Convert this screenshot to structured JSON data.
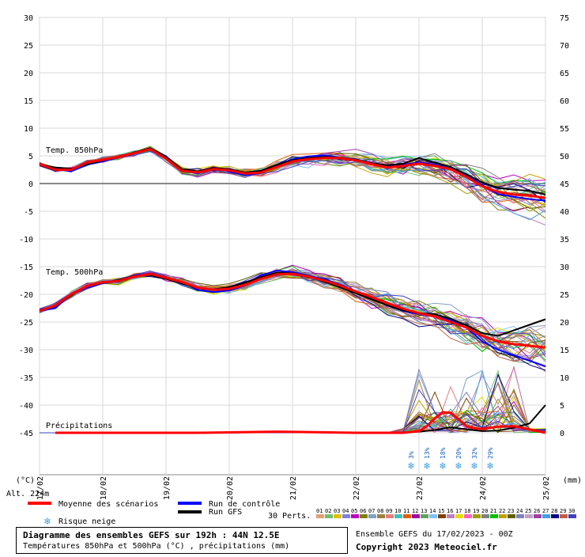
{
  "chart_data": {
    "type": "line",
    "title": "Diagramme des ensembles GEFS sur 192h : 44N 12.5E",
    "subtitle": "Températures 850hPa et 500hPa (°C) , précipitations (mm)",
    "left_axis": {
      "label": "(°C)",
      "ticks": [
        30,
        25,
        20,
        15,
        10,
        5,
        0,
        -5,
        -10,
        -15,
        -20,
        -25,
        -30,
        -35,
        -40,
        -45
      ],
      "range": [
        -45,
        30
      ]
    },
    "right_axis": {
      "label": "(mm)",
      "ticks": [
        75,
        70,
        65,
        60,
        55,
        50,
        45,
        40,
        35,
        30,
        25,
        20,
        15,
        10,
        5,
        0
      ],
      "range": [
        0,
        75
      ]
    },
    "x_axis": {
      "ticks": [
        "17/02",
        "18/02",
        "19/02",
        "20/02",
        "21/02",
        "22/02",
        "23/02",
        "24/02",
        "25/02"
      ],
      "range": [
        0,
        192
      ]
    },
    "altitude": "Alt. 224m",
    "panels": {
      "t850": "Temp. 850hPa",
      "t500": "Temp. 500hPa",
      "precip": "Précipitations"
    },
    "snow_risk": [
      {
        "x": 141,
        "label": "3%"
      },
      {
        "x": 147,
        "label": "13%"
      },
      {
        "x": 153,
        "label": "18%"
      },
      {
        "x": 159,
        "label": "20%"
      },
      {
        "x": 165,
        "label": "32%"
      },
      {
        "x": 171,
        "label": "29%"
      }
    ],
    "t850_mean": {
      "x": [
        0,
        6,
        12,
        18,
        24,
        30,
        36,
        42,
        48,
        54,
        60,
        66,
        72,
        78,
        84,
        90,
        96,
        102,
        108,
        114,
        120,
        126,
        132,
        138,
        144,
        150,
        156,
        162,
        168,
        174,
        180,
        186,
        192
      ],
      "y": [
        3.5,
        2.5,
        2.5,
        3.8,
        4.3,
        4.8,
        5.5,
        6.2,
        4.5,
        2.3,
        2.0,
        2.6,
        2.4,
        1.8,
        2.0,
        3.0,
        4.0,
        4.4,
        4.6,
        4.6,
        4.2,
        3.5,
        2.9,
        3.2,
        3.6,
        3.2,
        2.6,
        1.2,
        -0.5,
        -1.5,
        -2.0,
        -2.2,
        -2.6
      ]
    },
    "t850_control": {
      "x": [
        0,
        6,
        12,
        18,
        24,
        30,
        36,
        42,
        48,
        54,
        60,
        66,
        72,
        78,
        84,
        90,
        96,
        102,
        108,
        114,
        120,
        126,
        132,
        138,
        144,
        150,
        156,
        162,
        168,
        174,
        180,
        186,
        192
      ],
      "y": [
        3.5,
        2.8,
        2.2,
        3.4,
        4.0,
        4.7,
        5.4,
        6.2,
        4.9,
        2.5,
        1.8,
        2.9,
        2.2,
        1.5,
        1.9,
        3.3,
        4.4,
        4.9,
        5.1,
        4.7,
        4.4,
        3.6,
        3.1,
        3.4,
        3.8,
        3.4,
        2.9,
        1.6,
        -0.3,
        -1.9,
        -2.4,
        -2.8,
        -3.1
      ]
    },
    "t850_gfs": {
      "x": [
        0,
        6,
        12,
        18,
        24,
        30,
        36,
        42,
        48,
        54,
        60,
        66,
        72,
        78,
        84,
        90,
        96,
        102,
        108,
        114,
        120,
        126,
        132,
        138,
        144,
        150,
        156,
        162,
        168,
        174,
        180,
        186,
        192
      ],
      "y": [
        3.5,
        2.9,
        2.7,
        3.5,
        4.2,
        4.9,
        5.6,
        6.4,
        4.8,
        2.6,
        2.2,
        2.8,
        2.6,
        2.0,
        2.3,
        3.4,
        4.2,
        4.6,
        4.8,
        4.7,
        4.3,
        3.7,
        3.3,
        3.6,
        4.6,
        3.8,
        3.0,
        1.7,
        0.2,
        -0.8,
        -1.1,
        -1.3,
        -2.0
      ]
    },
    "t500_mean": {
      "x": [
        0,
        6,
        12,
        18,
        24,
        30,
        36,
        42,
        48,
        54,
        60,
        66,
        72,
        78,
        84,
        90,
        96,
        102,
        108,
        114,
        120,
        126,
        132,
        138,
        144,
        150,
        156,
        162,
        168,
        174,
        180,
        186,
        192
      ],
      "y": [
        -23,
        -22,
        -20,
        -18.5,
        -17.8,
        -17.6,
        -16.8,
        -16.3,
        -17.0,
        -17.8,
        -18.8,
        -19.2,
        -19.0,
        -18.3,
        -17.2,
        -16.4,
        -16.3,
        -16.8,
        -17.5,
        -18.4,
        -19.5,
        -20.5,
        -21.6,
        -22.6,
        -23.4,
        -24.0,
        -25.0,
        -26.0,
        -27.5,
        -28.5,
        -29.0,
        -29.3,
        -29.6
      ]
    },
    "t500_control": {
      "x": [
        0,
        6,
        12,
        18,
        24,
        30,
        36,
        42,
        48,
        54,
        60,
        66,
        72,
        78,
        84,
        90,
        96,
        102,
        108,
        114,
        120,
        126,
        132,
        138,
        144,
        150,
        156,
        162,
        168,
        174,
        180,
        186,
        192
      ],
      "y": [
        -23,
        -22.5,
        -20,
        -18.8,
        -18.0,
        -17.5,
        -16.6,
        -16.2,
        -16.9,
        -17.8,
        -19.2,
        -19.6,
        -19.3,
        -18.4,
        -16.6,
        -15.7,
        -16.0,
        -16.6,
        -17.3,
        -18.2,
        -19.5,
        -20.8,
        -22.0,
        -23.0,
        -23.6,
        -24.0,
        -24.6,
        -26.0,
        -28.5,
        -30.0,
        -31.0,
        -32.0,
        -33.0
      ]
    },
    "t500_gfs": {
      "x": [
        0,
        6,
        12,
        18,
        24,
        30,
        36,
        42,
        48,
        54,
        60,
        66,
        72,
        78,
        84,
        90,
        96,
        102,
        108,
        114,
        120,
        126,
        132,
        138,
        144,
        150,
        156,
        162,
        168,
        174,
        180,
        186,
        192
      ],
      "y": [
        -23,
        -22,
        -20.2,
        -18.4,
        -17.9,
        -17.4,
        -16.7,
        -16.5,
        -17.2,
        -18.0,
        -18.9,
        -19.1,
        -18.7,
        -17.9,
        -16.9,
        -16.1,
        -16.2,
        -16.8,
        -17.7,
        -18.7,
        -19.8,
        -20.9,
        -22.0,
        -22.9,
        -23.4,
        -23.6,
        -24.4,
        -25.6,
        -27.0,
        -27.5,
        -26.5,
        -25.5,
        -24.5
      ]
    },
    "precip_mean": {
      "x": [
        6,
        30,
        60,
        90,
        120,
        138,
        144,
        147,
        150,
        153,
        156,
        159,
        162,
        165,
        168,
        174,
        180,
        186,
        192
      ],
      "y": [
        0,
        0,
        0,
        0.2,
        0,
        0,
        0.3,
        1.2,
        2.6,
        3.7,
        3.6,
        2.4,
        1.2,
        0.8,
        0.7,
        1.1,
        1.2,
        0.6,
        0
      ]
    },
    "precip_gfs": {
      "x": [
        132,
        144,
        150,
        156,
        162,
        168,
        174,
        180,
        186,
        192
      ],
      "y": [
        0,
        0.2,
        0.5,
        1.0,
        0.6,
        0.3,
        0.4,
        0.9,
        1.7,
        5.0
      ]
    }
  },
  "legend": {
    "mean": "Moyenne des scénarios",
    "control": "Run de contrôle",
    "gfs": "Run GFS",
    "snow": "Risque neige",
    "perts_label": "30 Perts.",
    "pert_numbers": [
      "01",
      "02",
      "03",
      "04",
      "05",
      "06",
      "07",
      "08",
      "09",
      "10",
      "11",
      "12",
      "13",
      "14",
      "15",
      "16",
      "17",
      "18",
      "19",
      "20",
      "21",
      "22",
      "23",
      "24",
      "25",
      "26",
      "27",
      "28",
      "29",
      "30"
    ],
    "pert_colors": [
      "#e0a070",
      "#70c070",
      "#e0c000",
      "#8080e0",
      "#c000c0",
      "#808000",
      "#80a0c0",
      "#a08040",
      "#e08080",
      "#40c0c0",
      "#e06000",
      "#a000a0",
      "#60a060",
      "#80c0ff",
      "#804000",
      "#c080c0",
      "#e0e000",
      "#ff60c0",
      "#a0a000",
      "#808080",
      "#00c000",
      "#c0a000",
      "#606000",
      "#8080c0",
      "#c0a0c0",
      "#a040a0",
      "#40a0e0",
      "#000080",
      "#c06040",
      "#4040c0"
    ],
    "colors": {
      "mean": "#ff0000",
      "control": "#0000ff",
      "gfs": "#000000"
    }
  },
  "footer": {
    "title": "Diagramme des ensembles GEFS sur 192h : 44N 12.5E",
    "subtitle": "Températures 850hPa et 500hPa (°C) , précipitations (mm)",
    "run_info": "Ensemble GEFS du 17/02/2023 - 00Z",
    "copyright": "Copyright 2023 Meteociel.fr"
  }
}
